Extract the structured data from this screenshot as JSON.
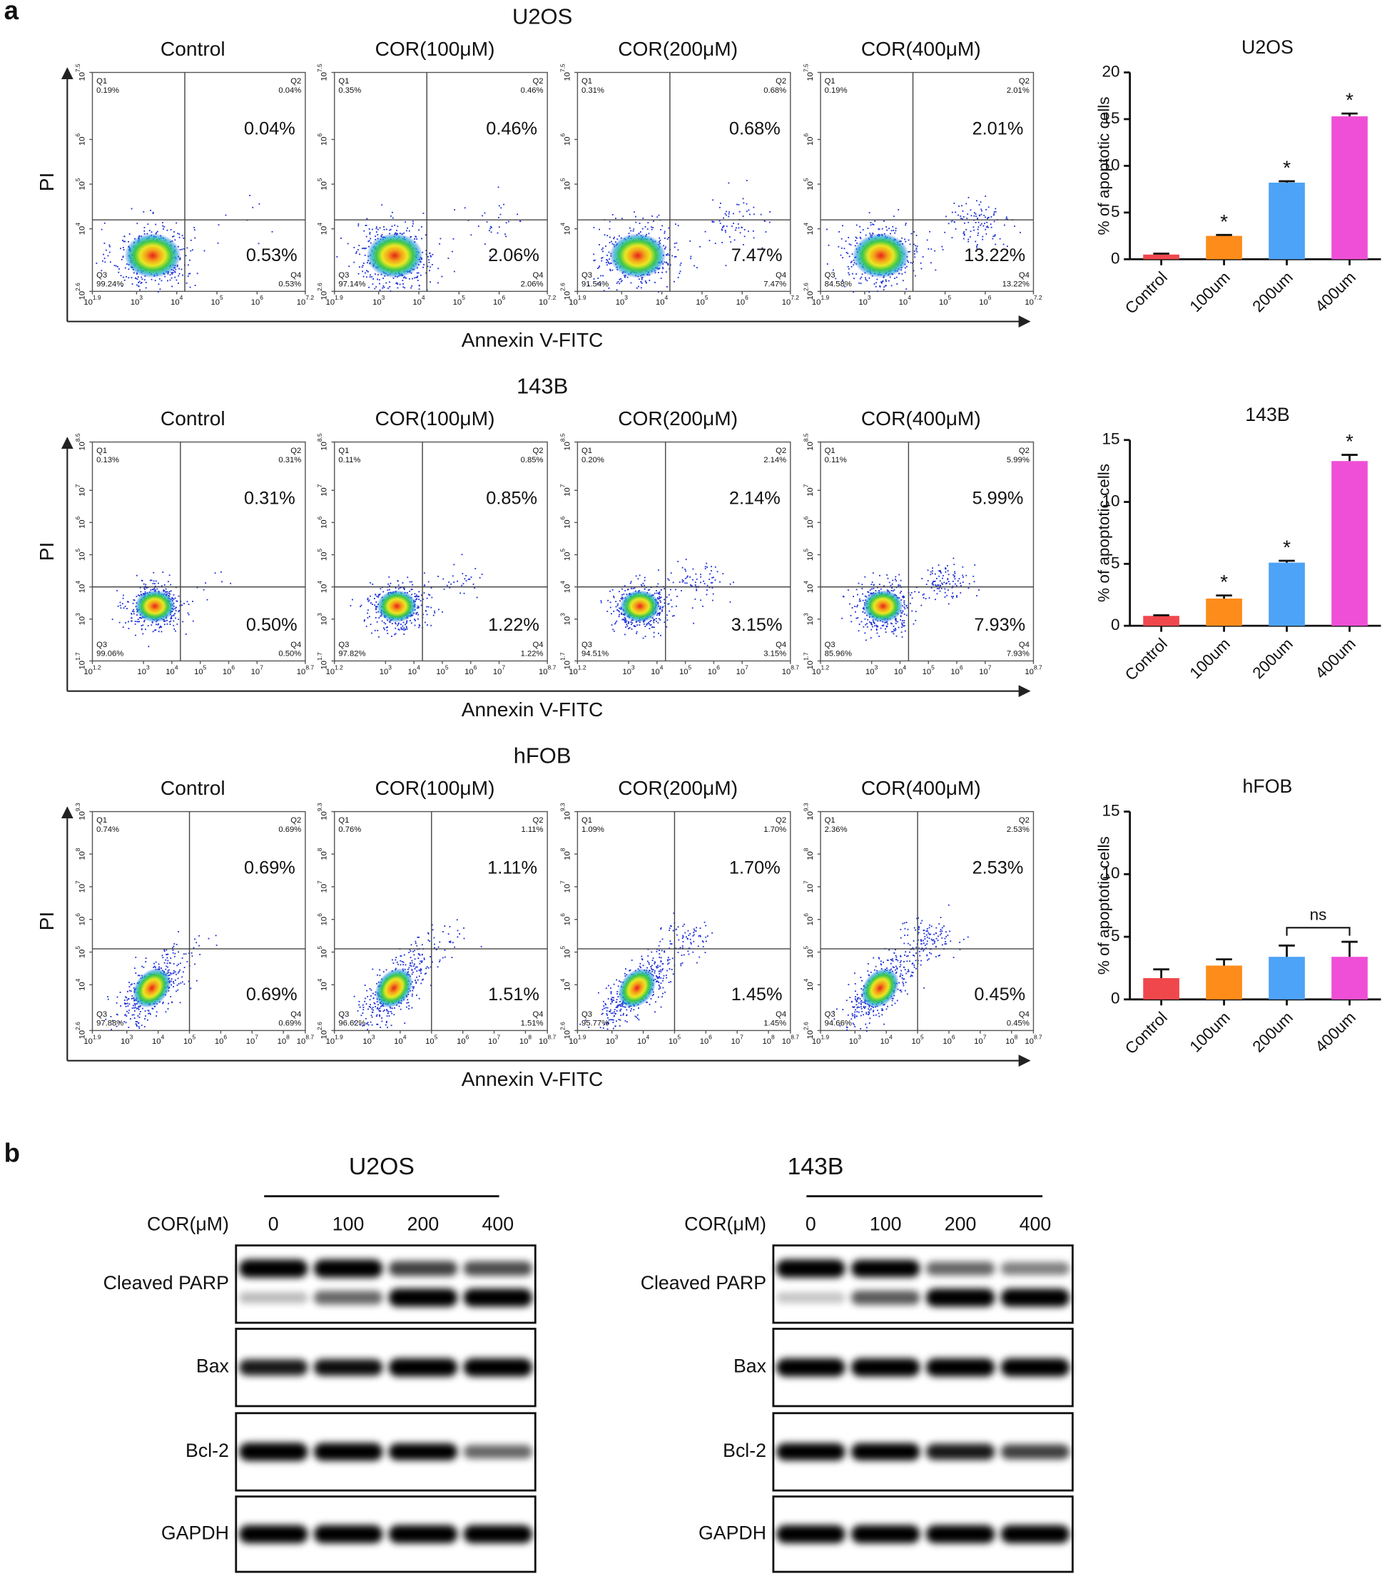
{
  "panel_labels": [
    "a",
    "b"
  ],
  "flow_cytometry": {
    "axis_labels": {
      "y": "PI",
      "x": "Annexin V-FITC"
    },
    "log_base": "10",
    "quadrant_names": [
      "Q1",
      "Q2",
      "Q3",
      "Q4"
    ],
    "conditions": [
      "Control",
      "COR(100μM)",
      "COR(200μM)",
      "COR(400μM)"
    ],
    "rows": [
      {
        "cell_line": "U2OS",
        "xlim": [
          1.9,
          7.2
        ],
        "xticks": [
          1.9,
          3,
          4,
          5,
          6,
          7.2
        ],
        "ylim": [
          2.6,
          7.5
        ],
        "yticks": [
          2.6,
          4,
          5,
          6,
          7.5
        ],
        "gate": [
          4.2,
          4.2
        ],
        "plots": [
          [
            "0.19%",
            "0.04%",
            "99.24%",
            "0.53%"
          ],
          [
            "0.35%",
            "0.46%",
            "97.14%",
            "2.06%"
          ],
          [
            "0.31%",
            "0.68%",
            "91.54%",
            "7.47%"
          ],
          [
            "0.19%",
            "2.01%",
            "84.58%",
            "13.22%"
          ]
        ]
      },
      {
        "cell_line": "143B",
        "xlim": [
          1.2,
          8.7
        ],
        "xticks": [
          1.2,
          3,
          4,
          5,
          6,
          7,
          8.7
        ],
        "ylim": [
          1.7,
          8.5
        ],
        "yticks": [
          1.7,
          3,
          4,
          5,
          6,
          7,
          8.5
        ],
        "gate": [
          4.3,
          4.0
        ],
        "plots": [
          [
            "0.13%",
            "0.31%",
            "99.06%",
            "0.50%"
          ],
          [
            "0.11%",
            "0.85%",
            "97.82%",
            "1.22%"
          ],
          [
            "0.20%",
            "2.14%",
            "94.51%",
            "3.15%"
          ],
          [
            "0.11%",
            "5.99%",
            "85.96%",
            "7.93%"
          ]
        ]
      },
      {
        "cell_line": "hFOB",
        "xlim": [
          1.9,
          8.7
        ],
        "xticks": [
          1.9,
          3,
          4,
          5,
          6,
          7,
          8,
          8.7
        ],
        "ylim": [
          2.6,
          9.3
        ],
        "yticks": [
          2.6,
          4,
          5,
          6,
          7,
          8,
          9.3
        ],
        "gate": [
          5.0,
          5.1
        ],
        "plots": [
          [
            "0.74%",
            "0.69%",
            "97.88%",
            "0.69%"
          ],
          [
            "0.76%",
            "1.11%",
            "96.62%",
            "1.51%"
          ],
          [
            "1.09%",
            "1.70%",
            "95.77%",
            "1.45%"
          ],
          [
            "2.36%",
            "2.53%",
            "94.66%",
            "0.45%"
          ]
        ]
      }
    ]
  },
  "chart_data": [
    {
      "type": "bar",
      "title": "U2OS",
      "ylabel": "% of apoptotic cells",
      "categories": [
        "Control",
        "100um",
        "200um",
        "400um"
      ],
      "values": [
        0.5,
        2.5,
        8.2,
        15.3
      ],
      "errors": [
        0.1,
        0.1,
        0.15,
        0.3
      ],
      "colors": [
        "#f0474d",
        "#fd8c1b",
        "#4da3f7",
        "#ef4fd6"
      ],
      "ylim": [
        0,
        20
      ],
      "yticks": [
        0,
        5,
        10,
        15,
        20
      ],
      "marks": [
        null,
        "*",
        "*",
        "*"
      ]
    },
    {
      "type": "bar",
      "title": "143B",
      "ylabel": "% of apoptotic cells",
      "categories": [
        "Control",
        "100um",
        "200um",
        "400um"
      ],
      "values": [
        0.8,
        2.2,
        5.1,
        13.3
      ],
      "errors": [
        0.05,
        0.25,
        0.15,
        0.5
      ],
      "colors": [
        "#f0474d",
        "#fd8c1b",
        "#4da3f7",
        "#ef4fd6"
      ],
      "ylim": [
        0,
        15
      ],
      "yticks": [
        0,
        5,
        10,
        15
      ],
      "marks": [
        null,
        "*",
        "*",
        "*"
      ]
    },
    {
      "type": "bar",
      "title": "hFOB",
      "ylabel": "% of apoptotic cells",
      "categories": [
        "Control",
        "100um",
        "200um",
        "400um"
      ],
      "values": [
        1.7,
        2.7,
        3.4,
        3.4
      ],
      "errors": [
        0.7,
        0.5,
        0.9,
        1.2
      ],
      "colors": [
        "#f0474d",
        "#fd8c1b",
        "#4da3f7",
        "#ef4fd6"
      ],
      "ylim": [
        0,
        15
      ],
      "yticks": [
        0,
        5,
        10,
        15
      ],
      "bracket": {
        "label": "ns",
        "between": [
          2,
          3
        ]
      }
    }
  ],
  "western_blot": [
    {
      "cell_line": "U2OS",
      "dose_label": "COR(μM)",
      "doses": [
        0,
        100,
        200,
        400
      ],
      "proteins": [
        "Cleaved PARP",
        "Bax",
        "Bcl-2",
        "GAPDH"
      ]
    },
    {
      "cell_line": "143B",
      "dose_label": "COR(μM)",
      "doses": [
        0,
        100,
        200,
        400
      ],
      "proteins": [
        "Cleaved PARP",
        "Bax",
        "Bcl-2",
        "GAPDH"
      ]
    }
  ]
}
